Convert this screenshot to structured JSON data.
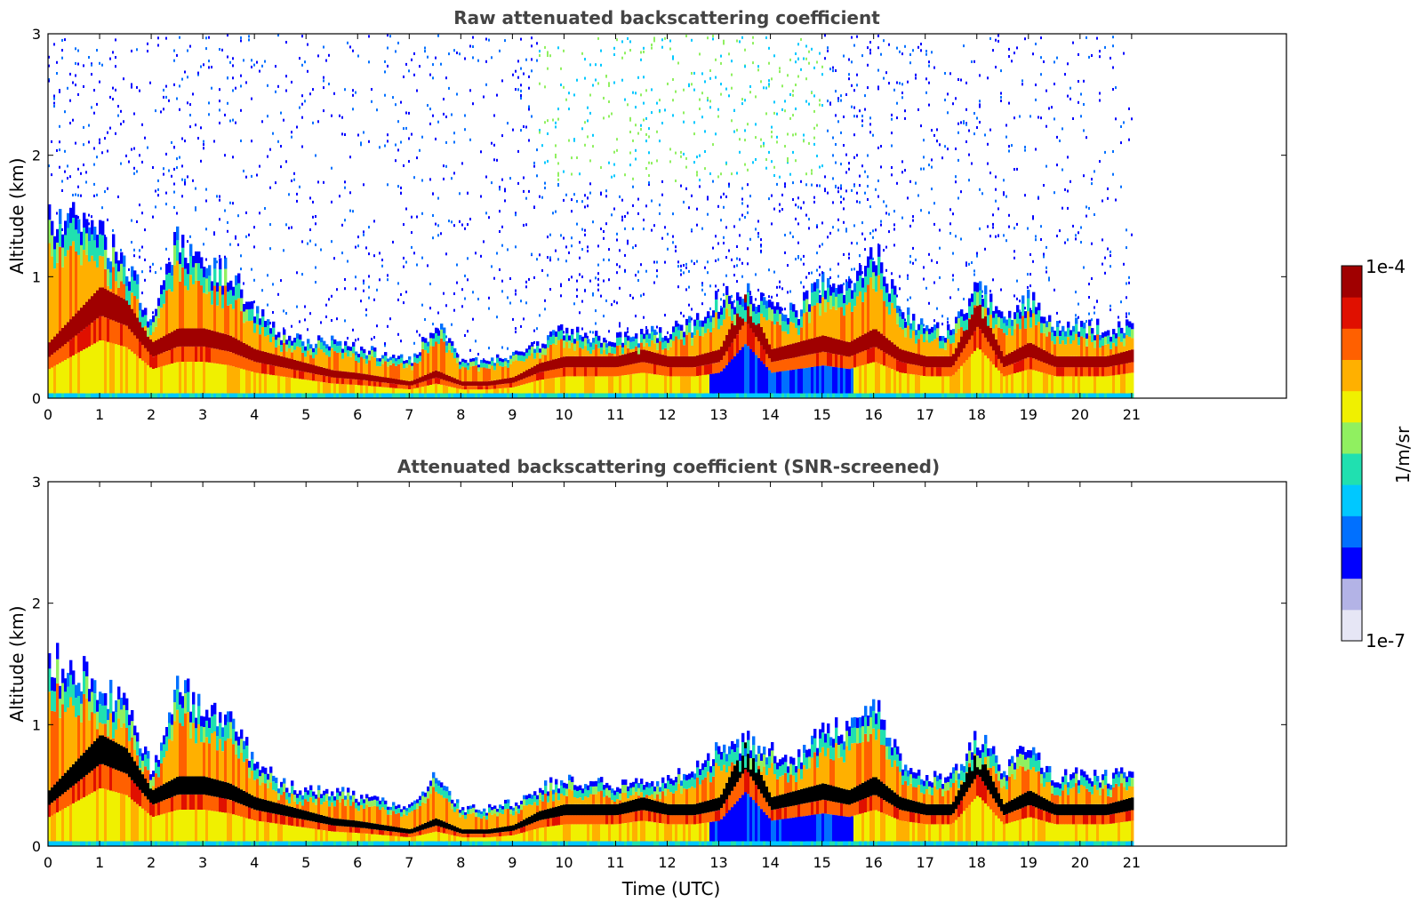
{
  "figure": {
    "xlabel": "Time (UTC)"
  },
  "chart_data": [
    {
      "type": "heatmap",
      "title": "Raw attenuated backscattering coefficient",
      "xlabel": "",
      "ylabel": "Altitude (km)",
      "xlim": [
        0,
        24
      ],
      "ylim": [
        0,
        3
      ],
      "x_ticks": [
        0,
        1,
        2,
        3,
        4,
        5,
        6,
        7,
        8,
        9,
        10,
        11,
        12,
        13,
        14,
        15,
        16,
        17,
        18,
        19,
        20,
        21
      ],
      "y_ticks": [
        0,
        1,
        2,
        3
      ],
      "data_extent_hours": 21,
      "boundary_layer_top_km": {
        "x": [
          0,
          0.5,
          1,
          1.5,
          2,
          2.5,
          3,
          3.5,
          4,
          4.5,
          5,
          5.5,
          6,
          6.5,
          7,
          7.5,
          8,
          8.5,
          9,
          9.5,
          10,
          10.5,
          11,
          11.5,
          12,
          12.5,
          13,
          13.5,
          14,
          14.5,
          15,
          15.5,
          16,
          16.5,
          17,
          17.5,
          18,
          18.5,
          19,
          19.5,
          20,
          20.5,
          21
        ],
        "y": [
          1.5,
          1.4,
          1.3,
          1.1,
          0.6,
          1.3,
          1.1,
          1.0,
          0.7,
          0.5,
          0.45,
          0.45,
          0.4,
          0.35,
          0.3,
          0.6,
          0.3,
          0.3,
          0.35,
          0.45,
          0.55,
          0.5,
          0.5,
          0.5,
          0.55,
          0.6,
          0.8,
          0.85,
          0.75,
          0.7,
          0.95,
          0.9,
          1.2,
          0.7,
          0.55,
          0.55,
          0.9,
          0.6,
          0.8,
          0.55,
          0.6,
          0.55,
          0.6
        ]
      },
      "aerosol_layer_km": {
        "x": [
          0,
          0.5,
          1,
          1.5,
          2,
          2.5,
          3,
          3.5,
          4,
          4.5,
          5,
          5.5,
          6,
          6.5,
          7,
          7.5,
          8,
          8.5,
          9,
          9.5,
          10,
          10.5,
          11,
          11.5,
          12,
          12.5,
          13,
          13.5,
          14,
          14.5,
          15,
          15.5,
          16,
          16.5,
          17,
          17.5,
          18,
          18.5,
          19,
          19.5,
          20,
          20.5,
          21
        ],
        "y": [
          0.4,
          0.6,
          0.8,
          0.7,
          0.4,
          0.5,
          0.5,
          0.45,
          0.35,
          0.3,
          0.25,
          0.2,
          0.18,
          0.15,
          0.12,
          0.2,
          0.12,
          0.12,
          0.15,
          0.25,
          0.3,
          0.3,
          0.3,
          0.35,
          0.3,
          0.3,
          0.35,
          0.75,
          0.35,
          0.4,
          0.45,
          0.4,
          0.5,
          0.35,
          0.3,
          0.3,
          0.7,
          0.3,
          0.4,
          0.3,
          0.3,
          0.3,
          0.35
        ]
      }
    },
    {
      "type": "heatmap",
      "title": "Attenuated backscattering coefficient (SNR-screened)",
      "xlabel": "Time (UTC)",
      "ylabel": "Altitude (km)",
      "xlim": [
        0,
        24
      ],
      "ylim": [
        0,
        3
      ],
      "x_ticks": [
        0,
        1,
        2,
        3,
        4,
        5,
        6,
        7,
        8,
        9,
        10,
        11,
        12,
        13,
        14,
        15,
        16,
        17,
        18,
        19,
        20,
        21
      ],
      "y_ticks": [
        0,
        1,
        2,
        3
      ],
      "data_extent_hours": 21,
      "noise_screened": true
    }
  ],
  "colorbar": {
    "label": "1/m/sr",
    "max_label": "1e-4",
    "min_label": "1e-7",
    "colors": [
      "#e6e6f5",
      "#b3b3e6",
      "#0000ff",
      "#0070ff",
      "#00c8ff",
      "#20e0b0",
      "#90f060",
      "#f0f000",
      "#ffb000",
      "#ff6000",
      "#e01000",
      "#a00000"
    ]
  }
}
